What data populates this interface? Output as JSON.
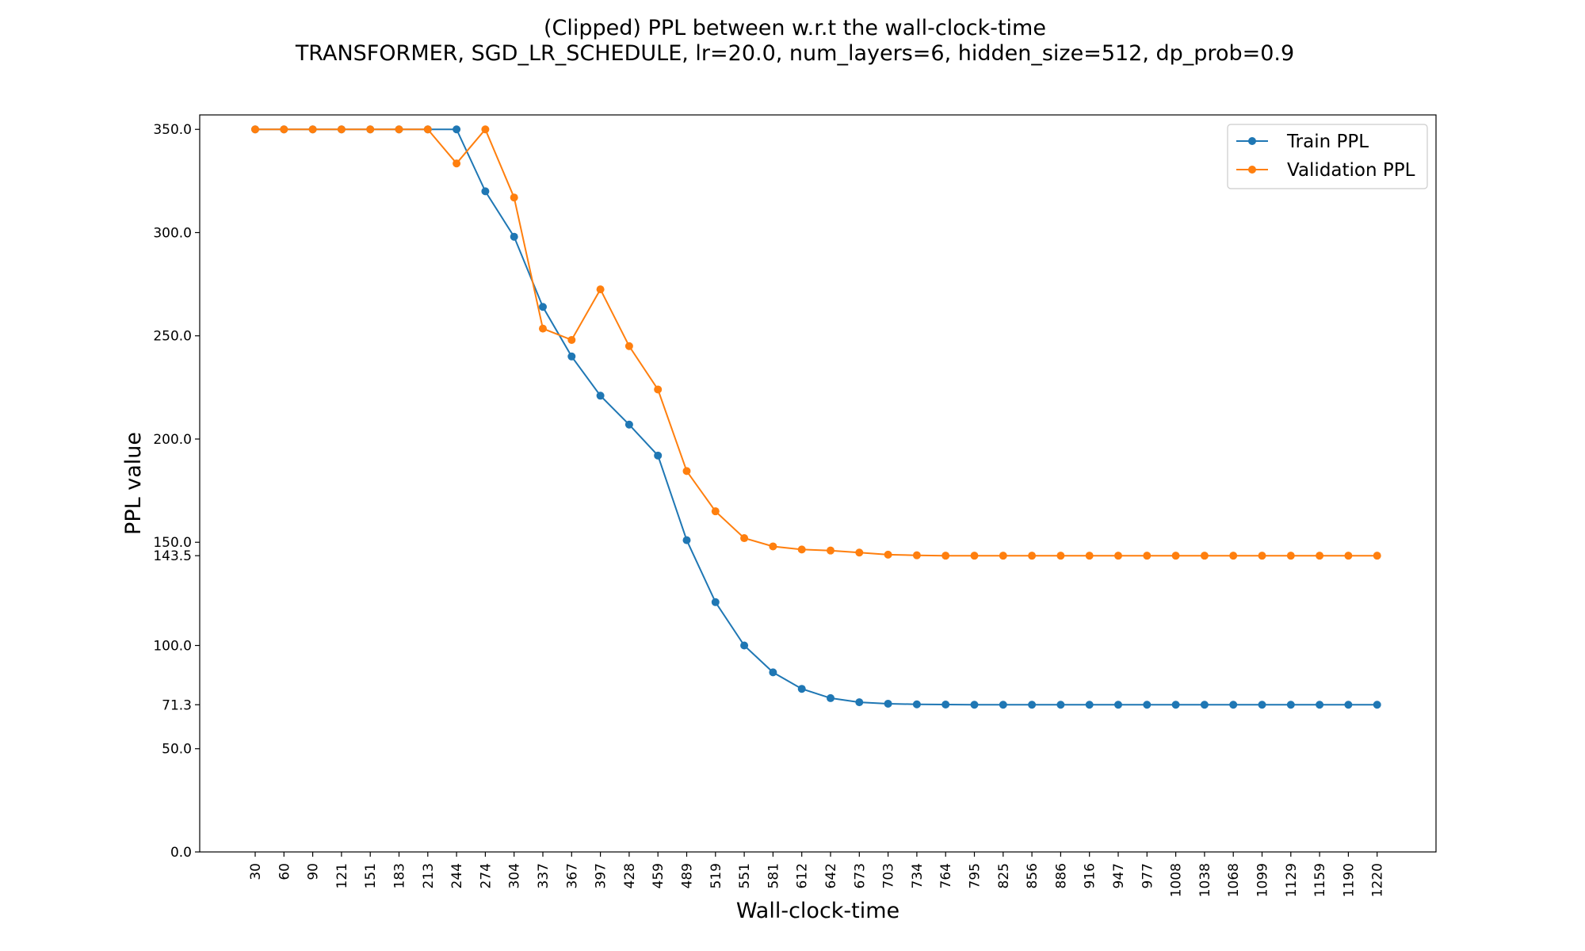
{
  "chart_data": {
    "type": "line",
    "title": "(Clipped) PPL between w.r.t the wall-clock-time",
    "subtitle": "TRANSFORMER, SGD_LR_SCHEDULE, lr=20.0,  num_layers=6,  hidden_size=512,  dp_prob=0.9",
    "xlabel": "Wall-clock-time",
    "ylabel": "PPL value",
    "ylim": [
      0,
      357
    ],
    "yticks": [
      0.0,
      50.0,
      71.3,
      100.0,
      143.5,
      150.0,
      200.0,
      250.0,
      300.0,
      350.0
    ],
    "ytick_labels": [
      "0.0",
      "50.0",
      "71.3",
      "100.0",
      "143.5",
      "150.0",
      "200.0",
      "250.0",
      "300.0",
      "350.0"
    ],
    "x": [
      "30",
      "60",
      "90",
      "121",
      "151",
      "183",
      "213",
      "244",
      "274",
      "304",
      "337",
      "367",
      "397",
      "428",
      "459",
      "489",
      "519",
      "551",
      "581",
      "612",
      "642",
      "673",
      "703",
      "734",
      "764",
      "795",
      "825",
      "856",
      "886",
      "916",
      "947",
      "977",
      "1008",
      "1038",
      "1068",
      "1099",
      "1129",
      "1159",
      "1190",
      "1220"
    ],
    "grid": false,
    "legend_position": "top-right",
    "series": [
      {
        "name": "Train PPL",
        "color": "#1f77b4",
        "values": [
          350,
          350,
          350,
          350,
          350,
          350,
          350,
          350,
          320,
          298,
          264,
          240,
          221,
          207,
          192,
          151,
          121,
          100,
          87,
          79,
          74.5,
          72.5,
          71.8,
          71.5,
          71.4,
          71.3,
          71.3,
          71.3,
          71.3,
          71.3,
          71.3,
          71.3,
          71.3,
          71.3,
          71.3,
          71.3,
          71.3,
          71.3,
          71.3,
          71.3
        ]
      },
      {
        "name": "Validation PPL",
        "color": "#ff7f0e",
        "values": [
          350,
          350,
          350,
          350,
          350,
          350,
          350,
          333.5,
          350,
          317,
          253.5,
          248,
          272.5,
          245,
          224,
          184.5,
          165,
          152,
          148,
          146.5,
          146,
          145,
          144,
          143.7,
          143.5,
          143.5,
          143.5,
          143.5,
          143.5,
          143.5,
          143.5,
          143.5,
          143.5,
          143.5,
          143.5,
          143.5,
          143.5,
          143.5,
          143.5,
          143.5
        ]
      }
    ]
  }
}
